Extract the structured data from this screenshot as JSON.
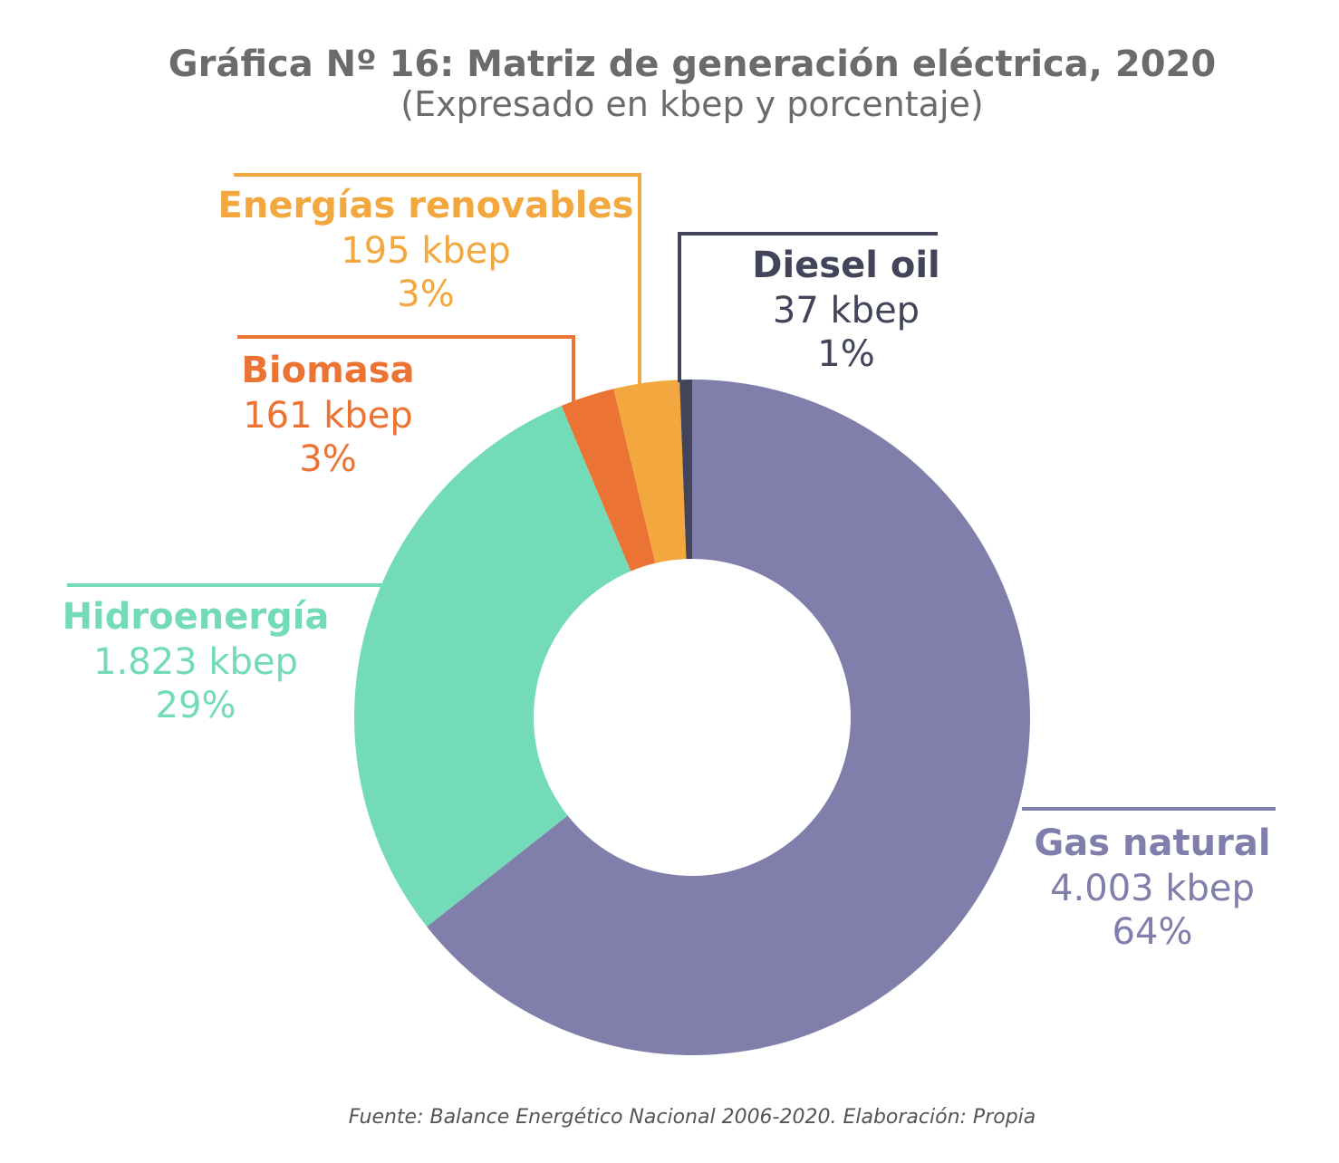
{
  "chart_data": {
    "type": "pie",
    "style": "donut",
    "title": "Gráfica Nº 16: Matriz de generación eléctrica, 2020",
    "subtitle": "(Expresado en kbep y porcentaje)",
    "source": "Fuente: Balance Energético Nacional 2006-2020. Elaboración: Propia",
    "unit": "kbep",
    "slices": [
      {
        "name": "Gas natural",
        "value": 4003,
        "value_label": "4.003 kbep",
        "percent_label": "64%",
        "color": "#807eab"
      },
      {
        "name": "Hidroenergía",
        "value": 1823,
        "value_label": "1.823 kbep",
        "percent_label": "29%",
        "color": "#74dbb8"
      },
      {
        "name": "Biomasa",
        "value": 161,
        "value_label": "161 kbep",
        "percent_label": "3%",
        "color": "#eb7333"
      },
      {
        "name": "Energías renovables",
        "value": 195,
        "value_label": "195 kbep",
        "percent_label": "3%",
        "color": "#f2a83f"
      },
      {
        "name": "Diesel oil",
        "value": 37,
        "value_label": "37 kbep",
        "percent_label": "1%",
        "color": "#42455a"
      }
    ]
  }
}
